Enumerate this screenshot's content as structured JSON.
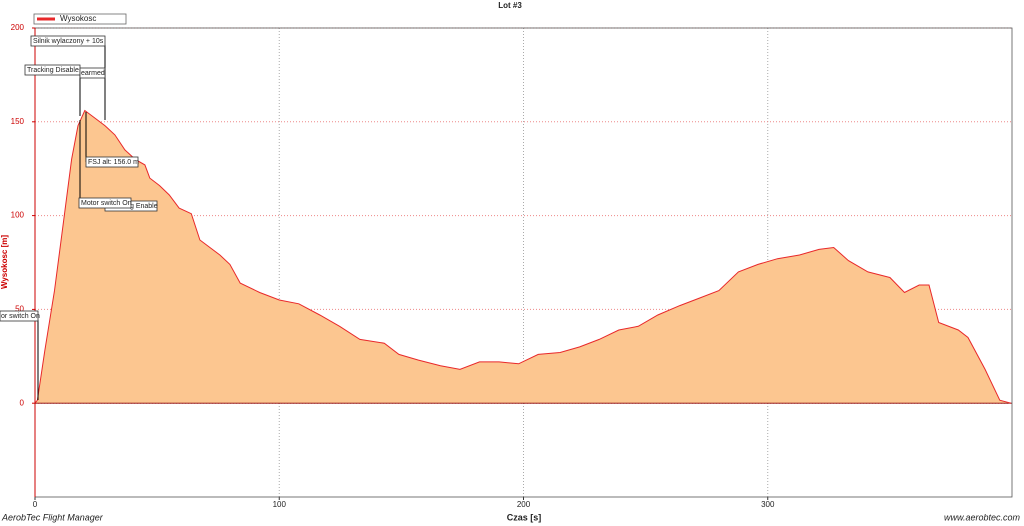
{
  "chart_data": {
    "type": "area",
    "title": "Lot #3",
    "x_label": "Czas [s]",
    "y_label": "Wysokosc [m]",
    "x": [
      0,
      1,
      4,
      8,
      12,
      15,
      17.6,
      20.4,
      24.5,
      28.6,
      32.7,
      36.8,
      41,
      45,
      47,
      51,
      55,
      59,
      64,
      67.5,
      71.6,
      75.7,
      79.8,
      84,
      92,
      100,
      108,
      116.6,
      124.7,
      133,
      143,
      149,
      157,
      166,
      174,
      182,
      190,
      198,
      206,
      215,
      223,
      231,
      239,
      247,
      255,
      264,
      272,
      280,
      288,
      296,
      304,
      313,
      321,
      327,
      333,
      341,
      350,
      356,
      362,
      366,
      370,
      378,
      382,
      389,
      395,
      399.6
    ],
    "series": [
      {
        "name": "Wysokosc",
        "color": "#e8282a",
        "fill": "#fcc690",
        "values": [
          0,
          1.6,
          28,
          60,
          100,
          130,
          148,
          156,
          152,
          148,
          143,
          135,
          130,
          127,
          120,
          116,
          111,
          104,
          101,
          87,
          83,
          79,
          74,
          64,
          59,
          55,
          53,
          47,
          41,
          34,
          32,
          26,
          23,
          20,
          18,
          22,
          22,
          21,
          26,
          27,
          30,
          34,
          39,
          41,
          47,
          52,
          56,
          60,
          70,
          74,
          77,
          79,
          82,
          83,
          76,
          70,
          67,
          59,
          63,
          63,
          43,
          39,
          35,
          18,
          1.6,
          0
        ]
      }
    ],
    "xlim": [
      0,
      400
    ],
    "ylim": [
      -50,
      200
    ],
    "xticks": [
      0,
      100,
      200,
      300
    ],
    "yticks": [
      0,
      50,
      100,
      150,
      200
    ],
    "grid": true,
    "annotations": [
      "Silnik wylaczony + 10s",
      "Tracking Disable",
      "earmed",
      "FSJ alt: 156.0 m",
      "Motor switch On",
      "g Enable",
      "or switch On"
    ],
    "footer_left": "AerobTec Flight Manager",
    "footer_right": "www.aerobtec.com"
  }
}
